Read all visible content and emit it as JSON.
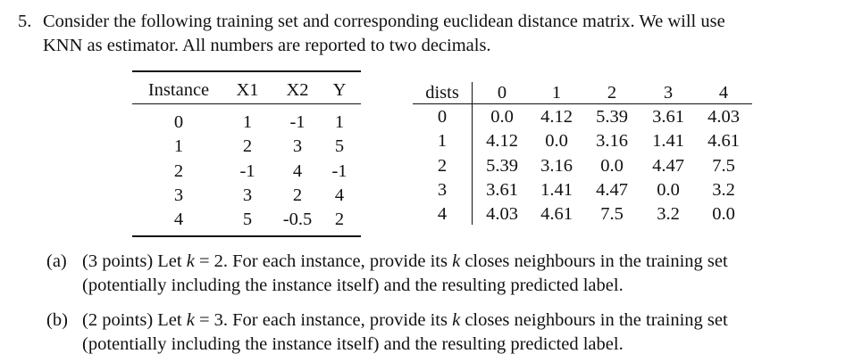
{
  "question": {
    "number": "5.",
    "lines": [
      "Consider the following training set and corresponding euclidean distance matrix. We will use",
      "KNN as estimator. All numbers are reported to two decimals."
    ]
  },
  "table1": {
    "header": [
      "Instance",
      "X1",
      "X2",
      "Y"
    ],
    "rows": [
      [
        "0",
        "1",
        "-1",
        "1"
      ],
      [
        "1",
        "2",
        "3",
        "5"
      ],
      [
        "2",
        "-1",
        "4",
        "-1"
      ],
      [
        "3",
        "3",
        "2",
        "4"
      ],
      [
        "4",
        "5",
        "-0.5",
        "2"
      ]
    ]
  },
  "table2": {
    "header": [
      "dists",
      "0",
      "1",
      "2",
      "3",
      "4"
    ],
    "rows": [
      [
        "0",
        "0.0",
        "4.12",
        "5.39",
        "3.61",
        "4.03"
      ],
      [
        "1",
        "4.12",
        "0.0",
        "3.16",
        "1.41",
        "4.61"
      ],
      [
        "2",
        "5.39",
        "3.16",
        "0.0",
        "4.47",
        "7.5"
      ],
      [
        "3",
        "3.61",
        "1.41",
        "4.47",
        "0.0",
        "3.2"
      ],
      [
        "4",
        "4.03",
        "4.61",
        "7.5",
        "3.2",
        "0.0"
      ]
    ]
  },
  "parts": [
    {
      "label": "(a)",
      "lines": [
        [
          "(3 points) Let ",
          "k",
          " = 2. For each instance, provide its ",
          "k",
          " closes neighbours in the training set"
        ],
        [
          "(potentially including the instance itself) and the resulting predicted label."
        ]
      ]
    },
    {
      "label": "(b)",
      "lines": [
        [
          "(2 points) Let ",
          "k",
          " = 3. For each instance, provide its ",
          "k",
          " closes neighbours in the training set"
        ],
        [
          "(potentially including the instance itself) and the resulting predicted label."
        ]
      ]
    }
  ]
}
